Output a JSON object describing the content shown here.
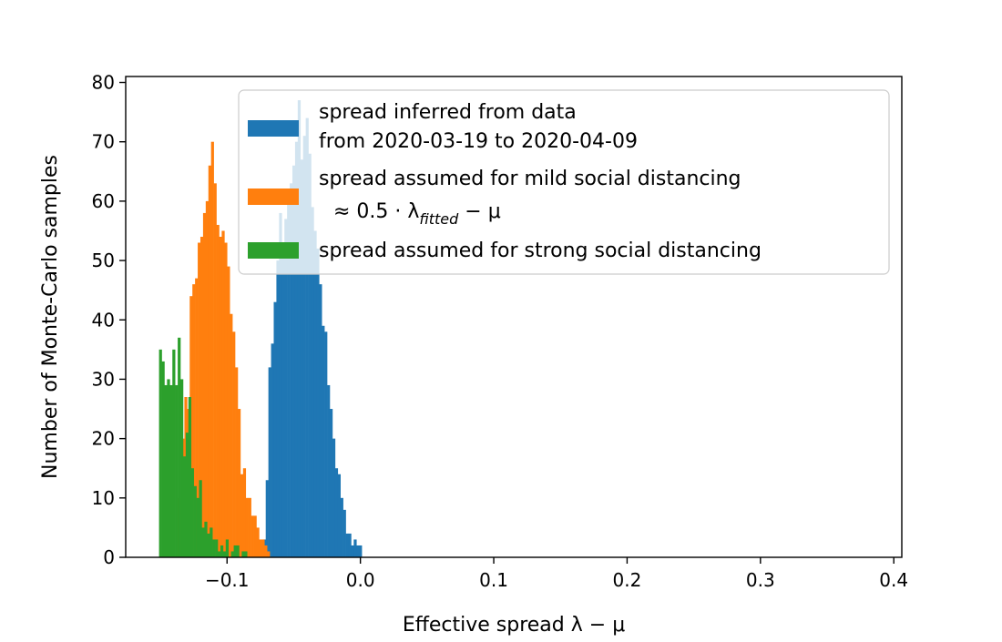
{
  "chart_data": {
    "type": "histogram",
    "xlabel": "Effective spread λ − μ",
    "ylabel": "Number of Monte-Carlo samples",
    "xlim": [
      -0.176,
      0.406
    ],
    "ylim": [
      0,
      81
    ],
    "x_ticks": [
      {
        "value": -0.1,
        "label": "−0.1"
      },
      {
        "value": 0.0,
        "label": "0.0"
      },
      {
        "value": 0.1,
        "label": "0.1"
      },
      {
        "value": 0.2,
        "label": "0.2"
      },
      {
        "value": 0.3,
        "label": "0.3"
      },
      {
        "value": 0.4,
        "label": "0.4"
      }
    ],
    "y_ticks": [
      0,
      10,
      20,
      30,
      40,
      50,
      60,
      70,
      80
    ],
    "grid": false,
    "legend_position": "upper right",
    "series": [
      {
        "name": "spread inferred from data from 2020-03-19 to 2020-04-09",
        "legend_lines": [
          "spread inferred from data",
          "from 2020-03-19 to 2020-04-09"
        ],
        "color": "#1f77b4",
        "x_start": -0.073,
        "bin_width": 0.002,
        "counts": [
          3,
          13,
          32,
          36,
          43,
          50,
          58,
          52,
          57,
          61,
          63,
          66,
          70,
          77,
          67,
          71,
          74,
          68,
          59,
          55,
          52,
          46,
          39,
          38,
          29,
          25,
          20,
          15,
          14,
          10,
          8,
          4,
          4,
          2,
          3,
          2,
          2,
          0
        ]
      },
      {
        "name": "spread assumed for mild social distancing ≈0.5·λ_fitted − μ",
        "legend_lines": [
          "spread assumed for mild social distancing",
          "≈ 0.5 · λ",
          "fitted",
          " − μ"
        ],
        "color": "#ff7f0e",
        "x_start": -0.138,
        "bin_width": 0.002,
        "counts": [
          10,
          10,
          20,
          27,
          25,
          44,
          46,
          47,
          53,
          54,
          58,
          60,
          66,
          70,
          63,
          56,
          54,
          55,
          53,
          49,
          41,
          38,
          32,
          25,
          14,
          15,
          10,
          10,
          7,
          7,
          5,
          3,
          3,
          2,
          1
        ]
      },
      {
        "name": "spread assumed for strong social distancing",
        "legend_lines": [
          "spread assumed for strong social distancing"
        ],
        "color": "#2ca02c",
        "x_start": -0.151,
        "bin_width": 0.002,
        "counts": [
          35,
          33,
          29,
          30,
          29,
          35,
          29,
          37,
          30,
          17,
          21,
          27,
          15,
          12,
          10,
          13,
          5,
          6,
          4,
          5,
          3,
          3,
          1,
          2,
          1,
          3,
          0,
          1,
          2,
          2,
          0,
          1,
          1
        ]
      }
    ]
  }
}
